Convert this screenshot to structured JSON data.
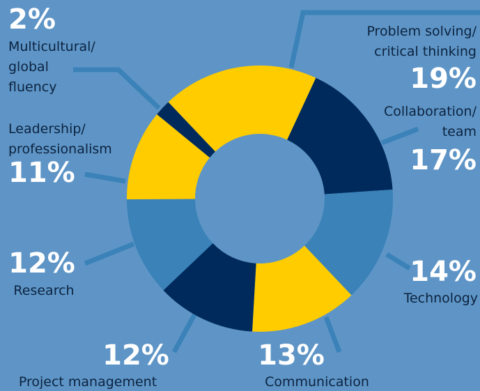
{
  "chart_data": {
    "type": "donut",
    "categories": [
      "Problem solving/\ncritical thinking",
      "Collaboration/\nteam",
      "Technology",
      "Communication",
      "Project management",
      "Research",
      "Leadership/\nprofessionalism",
      "Multicultural/\nglobal\nfluency"
    ],
    "values": [
      19,
      17,
      14,
      13,
      12,
      12,
      11,
      2
    ],
    "value_labels": [
      "19%",
      "17%",
      "14%",
      "13%",
      "12%",
      "12%",
      "11%",
      "2%"
    ],
    "colors": [
      "#ffcc00",
      "#002a5c",
      "#3a82b8",
      "#ffcc00",
      "#002a5c",
      "#3a82b8",
      "#ffcc00",
      "#002a5c"
    ]
  }
}
